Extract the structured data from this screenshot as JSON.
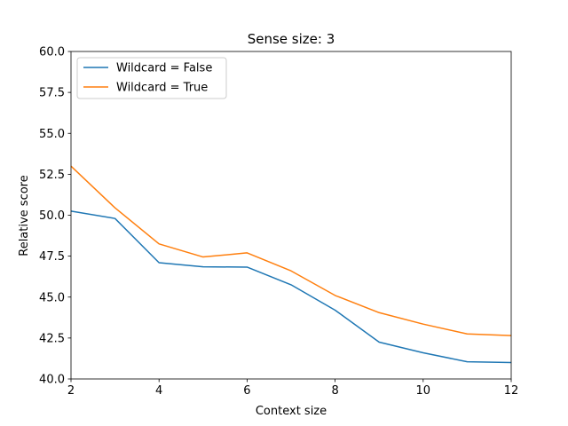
{
  "chart_data": {
    "type": "line",
    "title": "Sense size: 3",
    "xlabel": "Context size",
    "ylabel": "Relative score",
    "xlim": [
      2,
      12
    ],
    "ylim": [
      40.0,
      60.0
    ],
    "xticks": [
      2,
      4,
      6,
      8,
      10,
      12
    ],
    "yticks": [
      40.0,
      42.5,
      45.0,
      47.5,
      50.0,
      52.5,
      55.0,
      57.5,
      60.0
    ],
    "xtick_labels": [
      "2",
      "4",
      "6",
      "8",
      "10",
      "12"
    ],
    "ytick_labels": [
      "40.0",
      "42.5",
      "45.0",
      "47.5",
      "50.0",
      "52.5",
      "55.0",
      "57.5",
      "60.0"
    ],
    "x": [
      2,
      3,
      4,
      5,
      6,
      7,
      8,
      9,
      10,
      11,
      12
    ],
    "series": [
      {
        "name": "Wildcard = False",
        "color": "#1f77b4",
        "values": [
          50.25,
          49.8,
          47.1,
          46.85,
          46.83,
          45.75,
          44.2,
          42.25,
          41.6,
          41.05,
          41.0
        ]
      },
      {
        "name": "Wildcard = True",
        "color": "#ff7f0e",
        "values": [
          53.0,
          50.45,
          48.25,
          47.45,
          47.7,
          46.6,
          45.1,
          44.05,
          43.35,
          42.75,
          42.65
        ]
      }
    ],
    "grid": false,
    "legend": "upper-left"
  }
}
